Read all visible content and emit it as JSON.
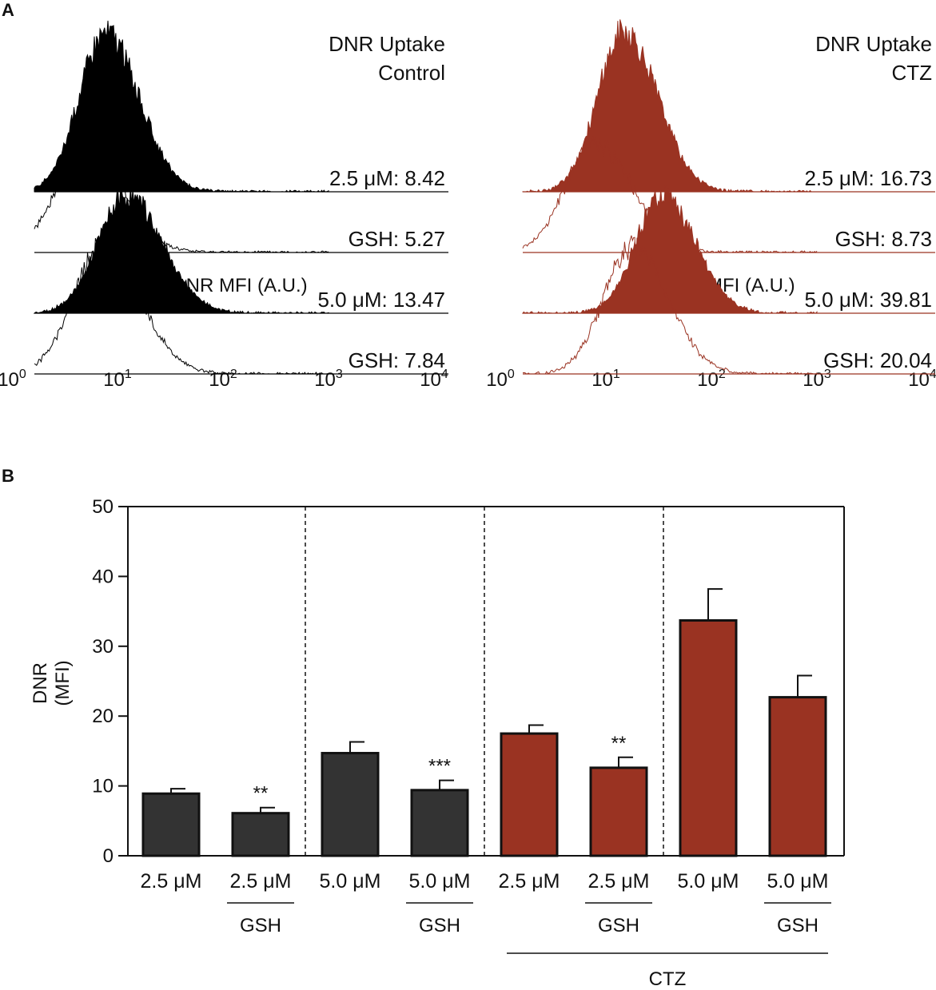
{
  "panel_labels": [
    "A",
    "B"
  ],
  "colors": {
    "control": "#000000",
    "ctz": "#9a3322",
    "control_bar": "#333333",
    "ctz_bar": "#9a3322"
  },
  "chart_data": [
    {
      "type": "area",
      "panel": "A",
      "title_lines": [
        "DNR Uptake",
        "Control"
      ],
      "xlabel": "DNR MFI (A.U.)",
      "xscale": "log",
      "xlim": [
        1,
        10000
      ],
      "x_ticks": [
        {
          "base": "10",
          "exp": "0",
          "value": 1
        },
        {
          "base": "10",
          "exp": "1",
          "value": 10
        },
        {
          "base": "10",
          "exp": "2",
          "value": 100
        },
        {
          "base": "10",
          "exp": "3",
          "value": 1000
        },
        {
          "base": "10",
          "exp": "4",
          "value": 10000
        }
      ],
      "series": [
        {
          "name": "2.5 µM",
          "label": "2.5 μM: 8.42",
          "mfi": 8.42,
          "fill": "filled",
          "spread": 0.25
        },
        {
          "name": "GSH",
          "label": "GSH: 5.27",
          "mfi": 5.27,
          "fill": "open",
          "spread": 0.27
        },
        {
          "name": "5.0 µM",
          "label": "5.0 μM: 13.47",
          "mfi": 13.47,
          "fill": "filled",
          "spread": 0.27
        },
        {
          "name": "GSH",
          "label": "GSH: 7.84",
          "mfi": 7.84,
          "fill": "open",
          "spread": 0.28
        }
      ]
    },
    {
      "type": "area",
      "panel": "A",
      "title_lines": [
        "DNR Uptake",
        "CTZ"
      ],
      "xlabel": "DNR MFI (A.U.)",
      "xscale": "log",
      "xlim": [
        1,
        10000
      ],
      "x_ticks": [
        {
          "base": "10",
          "exp": "0",
          "value": 1
        },
        {
          "base": "10",
          "exp": "1",
          "value": 10
        },
        {
          "base": "10",
          "exp": "2",
          "value": 100
        },
        {
          "base": "10",
          "exp": "3",
          "value": 1000
        },
        {
          "base": "10",
          "exp": "4",
          "value": 10000
        }
      ],
      "series": [
        {
          "name": "2.5 µM",
          "label": "2.5 μM: 16.73",
          "mfi": 16.73,
          "fill": "filled",
          "spread": 0.25
        },
        {
          "name": "GSH",
          "label": "GSH: 8.73",
          "mfi": 8.73,
          "fill": "open",
          "spread": 0.28
        },
        {
          "name": "5.0 µM",
          "label": "5.0 μM: 39.81",
          "mfi": 39.81,
          "fill": "filled",
          "spread": 0.25
        },
        {
          "name": "GSH",
          "label": "GSH: 20.04",
          "mfi": 20.04,
          "fill": "open",
          "spread": 0.27
        }
      ]
    },
    {
      "type": "bar",
      "panel": "B",
      "ylabel_lines": [
        "DNR",
        "(MFI)"
      ],
      "ylim": [
        0,
        50
      ],
      "yticks": [
        0,
        10,
        20,
        30,
        40,
        50
      ],
      "categories": [
        "2.5 μM",
        "2.5 μM",
        "5.0 μM",
        "5.0 μM",
        "2.5 μM",
        "2.5 μM",
        "5.0 μM",
        "5.0 μM"
      ],
      "values": [
        8.9,
        6.1,
        14.7,
        9.4,
        17.5,
        12.6,
        33.7,
        22.7
      ],
      "errors": [
        0.7,
        0.8,
        1.6,
        1.4,
        1.2,
        1.5,
        4.5,
        3.1
      ],
      "groups": [
        "control",
        "control",
        "control",
        "control",
        "ctz",
        "ctz",
        "ctz",
        "ctz"
      ],
      "significance": [
        "",
        "**",
        "",
        "***",
        "",
        "**",
        "",
        ""
      ],
      "gsh_label": "GSH",
      "gsh_indices": [
        1,
        3,
        5,
        7
      ],
      "ctz_label": "CTZ",
      "ctz_indices": [
        4,
        5,
        6,
        7
      ],
      "separators_after": [
        1,
        3,
        5
      ]
    }
  ]
}
